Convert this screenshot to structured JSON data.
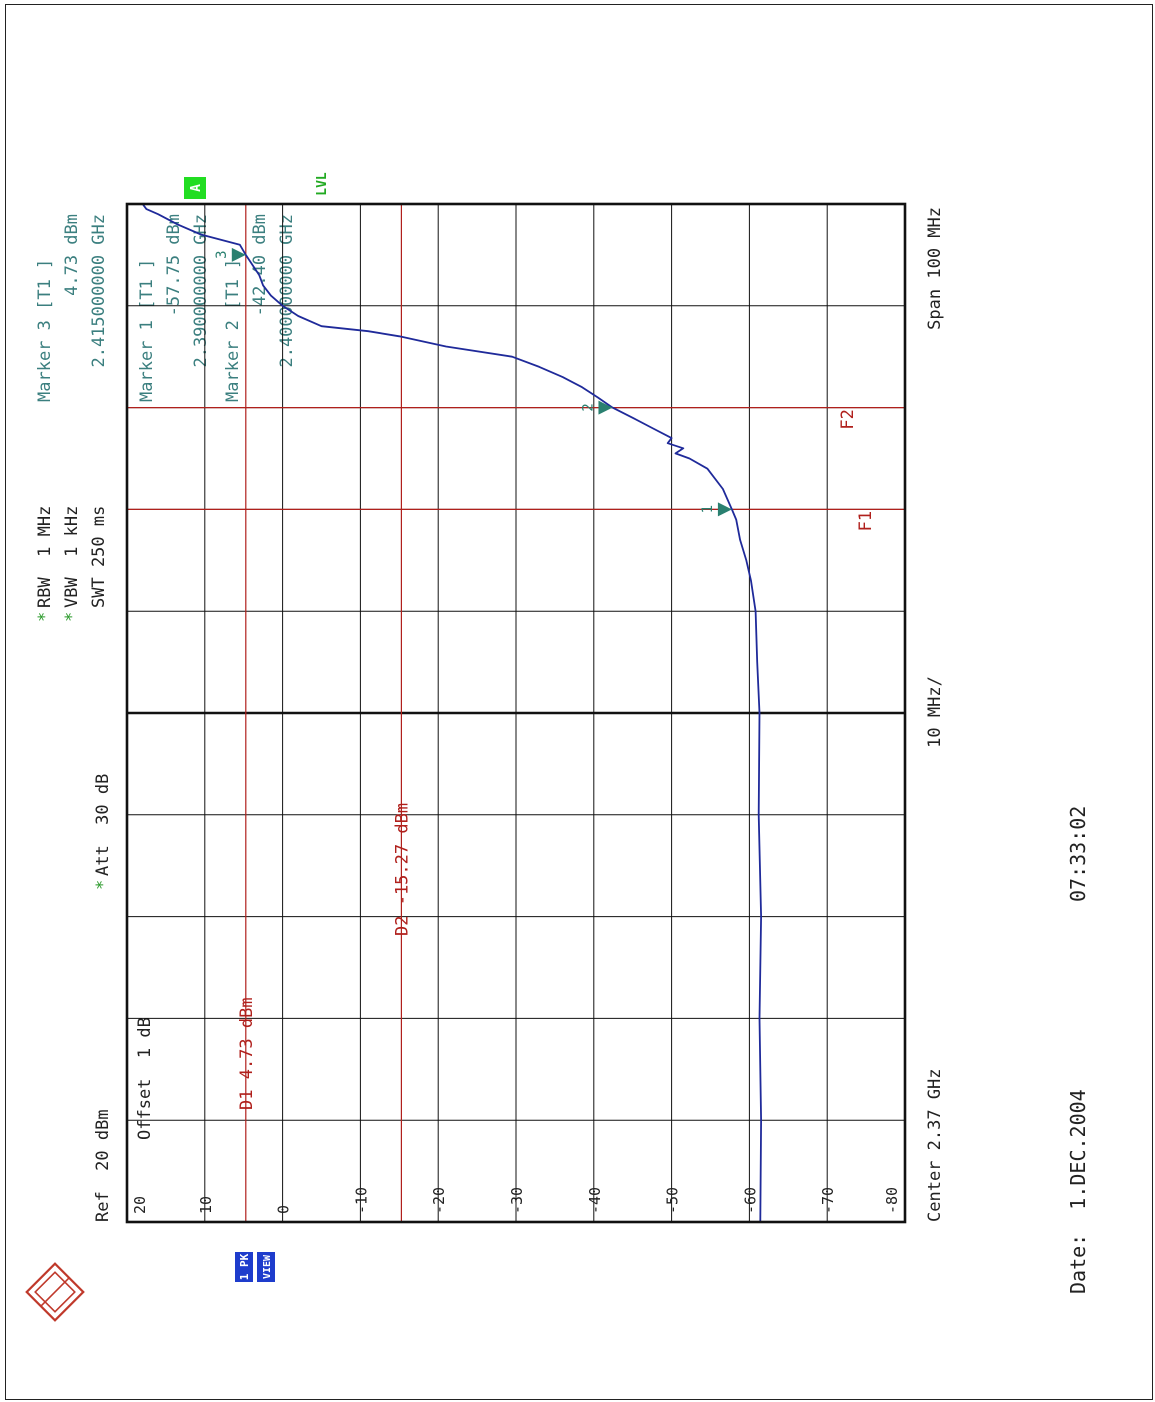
{
  "colors": {
    "trace": "#1f2a9a",
    "grid": "#111111",
    "display_line": "#b0201c",
    "info_text": "#3b7f7f",
    "marker": "#2a8070",
    "status_green": "#22dd22",
    "status_green_text": "#22aa22",
    "side_tag_bg": "#1e3ccc"
  },
  "header": {
    "ref": "Ref  20 dBm",
    "offset": "Offset  1 dB",
    "att": "Att  30 dB",
    "att_star": "*",
    "rbw": "RBW  1 MHz",
    "vbw": "VBW  1 kHz",
    "swt": "SWT 250 ms",
    "rbw_star": "*",
    "vbw_star": "*"
  },
  "markers_info": {
    "m3_title": "Marker 3 [T1 ]",
    "m3_level": "4.73 dBm",
    "m3_freq": "2.415000000 GHz",
    "m1_title": "Marker 1 [T1 ]",
    "m1_level": "-57.75 dBm",
    "m1_freq": "2.390000000 GHz",
    "m2_title": "Marker 2 [T1 ]",
    "m2_level": "-42.40 dBm",
    "m2_freq": "2.400000000 GHz"
  },
  "status": {
    "a_badge": "A",
    "lvl": "LVL",
    "trace_tag_1": "1 PK",
    "trace_tag_2": "VIEW"
  },
  "footer": {
    "center": "Center 2.37 GHz",
    "per_div": "10 MHz/",
    "span": "Span 100 MHz"
  },
  "date_line": {
    "date": "Date:  1.DEC.2004",
    "time": "07:33:02"
  },
  "chart_data": {
    "type": "line",
    "title": "",
    "xlabel": "",
    "ylabel": "",
    "x_unit": "GHz",
    "y_unit": "dBm",
    "xlim": [
      2.32,
      2.42
    ],
    "ylim": [
      -80,
      20
    ],
    "y_ticks": [
      20,
      10,
      0,
      -10,
      -20,
      -30,
      -40,
      -50,
      -60,
      -70,
      -80
    ],
    "y_tick_labels": [
      "20",
      "10",
      "0",
      "-10",
      "-20",
      "-30",
      "-40",
      "-50",
      "-60",
      "-70",
      "-80"
    ],
    "grid": true,
    "series": [
      {
        "x": [
          2.32,
          2.33,
          2.34,
          2.35,
          2.36,
          2.37,
          2.375,
          2.38,
          2.383,
          2.385,
          2.387,
          2.389,
          2.39,
          2.392,
          2.394,
          2.395,
          2.3955,
          2.396,
          2.3965,
          2.397,
          2.398,
          2.399,
          2.4,
          2.401,
          2.402,
          2.403,
          2.404,
          2.405,
          2.406,
          2.4065,
          2.407,
          2.4075,
          2.408,
          2.409,
          2.41,
          2.411,
          2.412,
          2.413,
          2.415,
          2.416,
          2.417,
          2.418,
          2.419,
          2.4195,
          2.42
        ],
        "y": [
          -61.4,
          -61.5,
          -61.3,
          -61.5,
          -61.2,
          -61.3,
          -61.0,
          -60.8,
          -60.2,
          -59.6,
          -58.8,
          -58.3,
          -57.75,
          -56.6,
          -54.6,
          -52.3,
          -50.5,
          -51.5,
          -49.5,
          -50.0,
          -47.5,
          -45.0,
          -42.4,
          -40.5,
          -38.5,
          -36.0,
          -33.0,
          -29.5,
          -21.0,
          -18.0,
          -15.0,
          -11.0,
          -5.0,
          -2.0,
          0.0,
          1.5,
          2.5,
          3.0,
          4.73,
          5.5,
          10.5,
          13.5,
          16.0,
          17.5,
          18.0
        ]
      }
    ],
    "display_lines": [
      {
        "label": "D1 4.73 dBm",
        "value": 4.73
      },
      {
        "label": "D2 -15.27 dBm",
        "value": -15.27
      }
    ],
    "frequency_lines": [
      {
        "label": "F1",
        "x": 2.39
      },
      {
        "label": "F2",
        "x": 2.4
      }
    ],
    "markers": [
      {
        "label": "1",
        "x": 2.39,
        "y": -57.75
      },
      {
        "label": "2",
        "x": 2.4,
        "y": -42.4
      },
      {
        "label": "3",
        "x": 2.415,
        "y": 4.73
      }
    ]
  }
}
